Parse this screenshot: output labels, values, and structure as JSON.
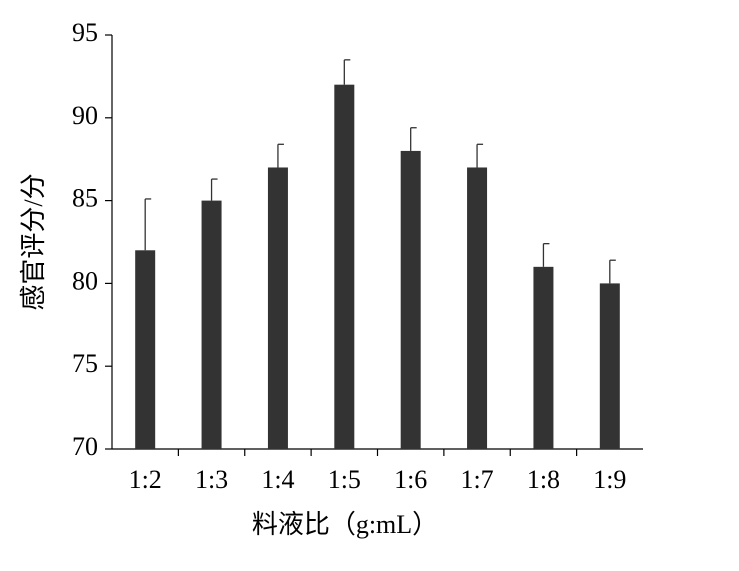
{
  "chart_data": {
    "type": "bar",
    "x_label": "料液比（g:mL）",
    "y_label": "感官评分/分",
    "categories": [
      "1:2",
      "1:3",
      "1:4",
      "1:5",
      "1:6",
      "1:7",
      "1:8",
      "1:9"
    ],
    "values": [
      82,
      85,
      87,
      92,
      88,
      87,
      81,
      80
    ],
    "errors": [
      3.1,
      1.3,
      1.4,
      1.5,
      1.4,
      1.4,
      1.4,
      1.4
    ],
    "color": "#333333",
    "ylim": [
      70,
      95
    ],
    "yticks": [
      70,
      75,
      80,
      85,
      90,
      95
    ]
  }
}
